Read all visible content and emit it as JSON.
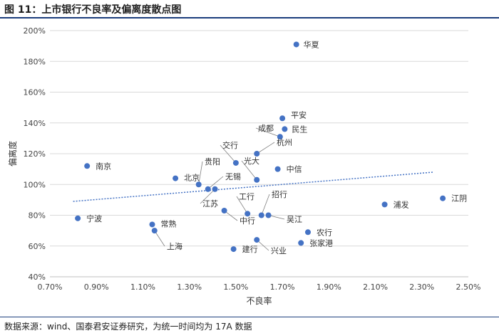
{
  "figure": {
    "title": "图 11：上市银行不良率及偏离度散点图",
    "source": "数据来源：wind、国泰君安证券研究，为统一时间均为 17A 数据"
  },
  "colors": {
    "point": "#4472c4",
    "trend": "#4472c4",
    "grid": "#d9d9d9",
    "axis": "#bfbfbf",
    "rule": "#1a3d7c",
    "leader": "#7f7f7f"
  },
  "chart_data": {
    "type": "scatter",
    "xlabel": "不良率",
    "ylabel": "偏离度",
    "xlim": [
      0.7,
      2.5
    ],
    "ylim": [
      40,
      200
    ],
    "x_ticks": [
      "0.70%",
      "0.90%",
      "1.10%",
      "1.30%",
      "1.50%",
      "1.70%",
      "1.90%",
      "2.10%",
      "2.30%",
      "2.50%"
    ],
    "y_ticks": [
      "40%",
      "60%",
      "80%",
      "100%",
      "120%",
      "140%",
      "160%",
      "180%",
      "200%"
    ],
    "grid": "horizontal",
    "trendline": {
      "style": "dotted",
      "x": [
        0.8,
        2.35
      ],
      "y": [
        89,
        108
      ]
    },
    "points": [
      {
        "label": "华夏",
        "x": 1.76,
        "y": 191
      },
      {
        "label": "平安",
        "x": 1.7,
        "y": 143
      },
      {
        "label": "民生",
        "x": 1.71,
        "y": 136
      },
      {
        "label": "成都",
        "x": 1.69,
        "y": 131
      },
      {
        "label": "杭州",
        "x": 1.59,
        "y": 120
      },
      {
        "label": "交行",
        "x": 1.5,
        "y": 114
      },
      {
        "label": "光大",
        "x": 1.59,
        "y": 103
      },
      {
        "label": "中信",
        "x": 1.68,
        "y": 110
      },
      {
        "label": "南京",
        "x": 0.86,
        "y": 112
      },
      {
        "label": "贵阳",
        "x": 1.34,
        "y": 100
      },
      {
        "label": "北京",
        "x": 1.24,
        "y": 104
      },
      {
        "label": "无锡",
        "x": 1.38,
        "y": 97
      },
      {
        "label": "江苏",
        "x": 1.41,
        "y": 97
      },
      {
        "label": "宁波",
        "x": 0.82,
        "y": 78
      },
      {
        "label": "常熟",
        "x": 1.14,
        "y": 74
      },
      {
        "label": "上海",
        "x": 1.15,
        "y": 70
      },
      {
        "label": "中行",
        "x": 1.45,
        "y": 83
      },
      {
        "label": "工行",
        "x": 1.55,
        "y": 81
      },
      {
        "label": "招行",
        "x": 1.61,
        "y": 80
      },
      {
        "label": "吴江",
        "x": 1.64,
        "y": 80
      },
      {
        "label": "农行",
        "x": 1.81,
        "y": 69
      },
      {
        "label": "张家港",
        "x": 1.78,
        "y": 62
      },
      {
        "label": "建行",
        "x": 1.49,
        "y": 58
      },
      {
        "label": "兴业",
        "x": 1.59,
        "y": 64
      },
      {
        "label": "浦发",
        "x": 2.14,
        "y": 87
      },
      {
        "label": "江阴",
        "x": 2.39,
        "y": 91
      }
    ]
  }
}
